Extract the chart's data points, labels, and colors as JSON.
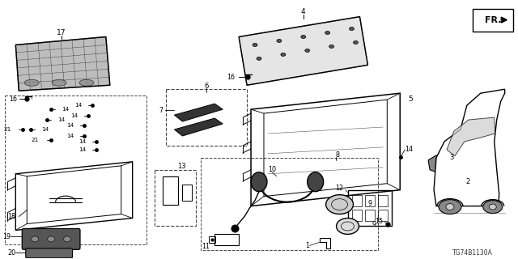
{
  "diagram_id": "TG74B1130A",
  "background_color": "#ffffff",
  "fig_width": 6.4,
  "fig_height": 3.2,
  "dpi": 100,
  "label_fs": 5.8,
  "small_fs": 5.2,
  "part17_label": "17",
  "part16a_label": "16",
  "part16b_label": "16",
  "part14_labels": [
    "14",
    "14",
    "14",
    "14",
    "14",
    "14",
    "14",
    "14"
  ],
  "part21_labels": [
    "21",
    "21"
  ],
  "part18_label": "18",
  "part19_label": "19",
  "part20_label": "20",
  "part4_label": "4",
  "part5_label": "5",
  "part6_label": "6",
  "part7_label": "7",
  "part8_label": "8",
  "part9_label": "9",
  "part10_label": "10",
  "part11_label": "11",
  "part12_label": "12",
  "part13_label": "13",
  "part14r_label": "14",
  "part15_label": "15",
  "part1_label": "1",
  "part2_label": "2",
  "part3_label": "3",
  "fr_text": "FR."
}
